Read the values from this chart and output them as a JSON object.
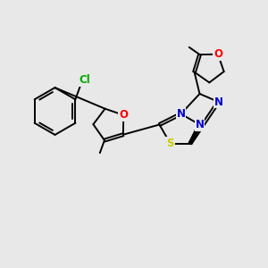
{
  "background_color": "#e8e8e8",
  "bond_color": "#000000",
  "bond_width": 1.4,
  "atom_colors": {
    "O": "#ff0000",
    "N": "#0000cc",
    "S": "#cccc00",
    "Cl": "#00aa00",
    "C": "#000000"
  },
  "font_size": 8.5
}
